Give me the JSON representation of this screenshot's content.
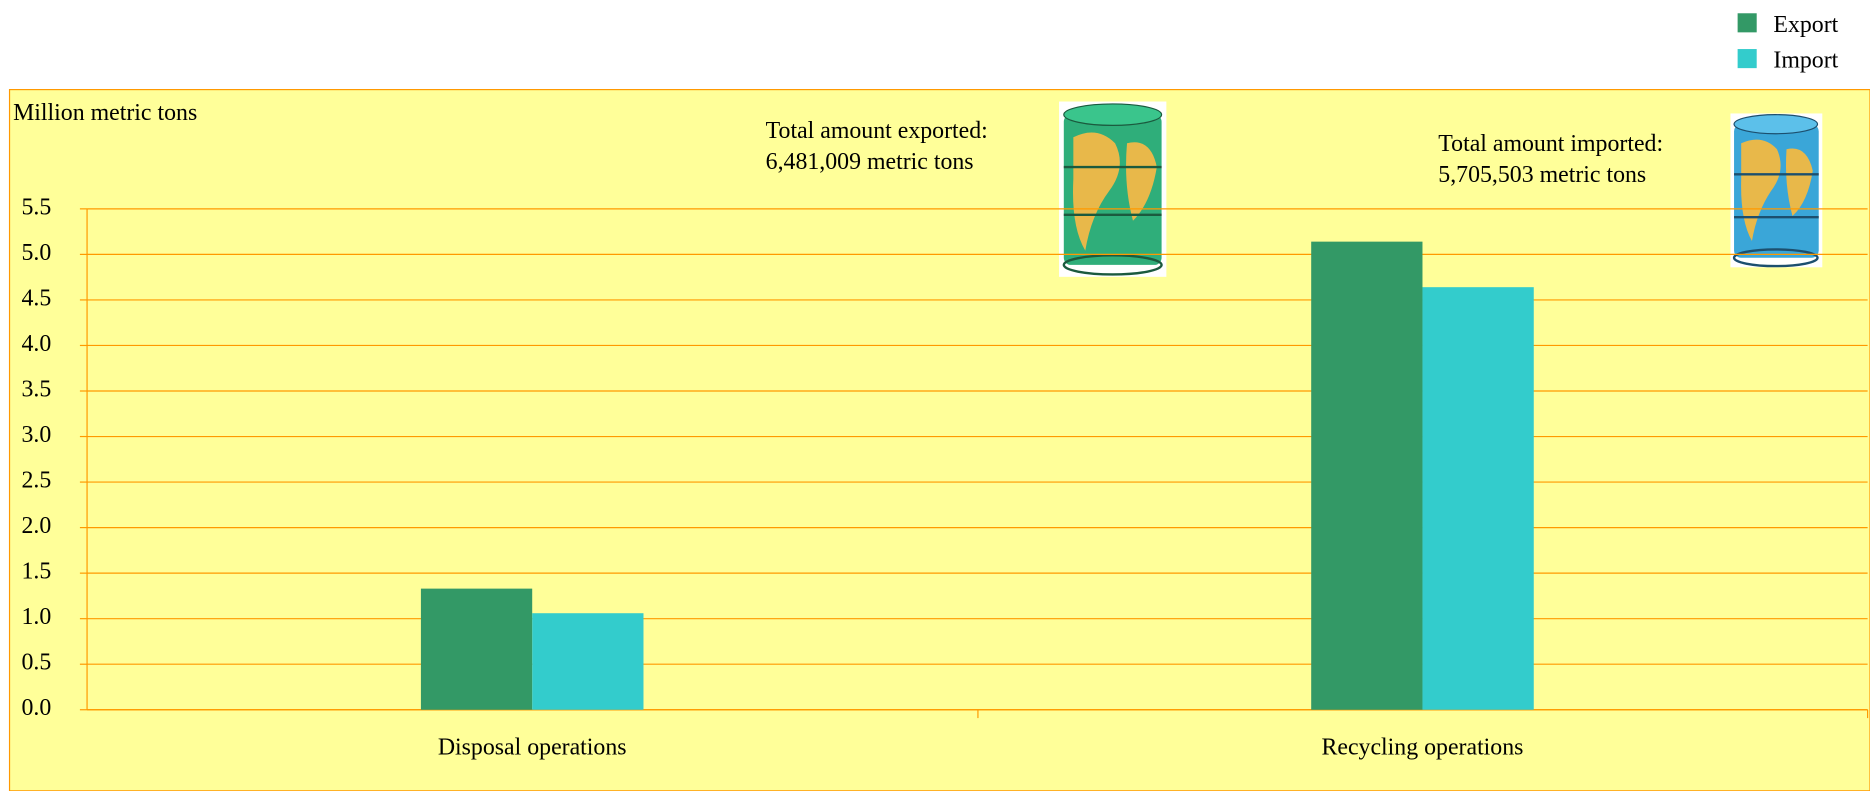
{
  "chart_data": {
    "type": "bar",
    "y_label": "Million metric tons",
    "categories": [
      "Disposal operations",
      "Recycling operations"
    ],
    "series": [
      {
        "name": "Export",
        "color": "#339966",
        "values": [
          1.33,
          5.14
        ]
      },
      {
        "name": "Import",
        "color": "#33cccc",
        "values": [
          1.06,
          4.64
        ]
      }
    ],
    "ylim": [
      0,
      5.5
    ],
    "yticks": [
      {
        "value": 0,
        "label": "0.0"
      },
      0.5,
      {
        "value": 1,
        "label": "1.0"
      },
      1.5,
      {
        "value": 2,
        "label": "2.0"
      },
      2.5,
      {
        "value": 3,
        "label": "3.0"
      },
      3.5,
      {
        "value": 4,
        "label": "4.0"
      },
      4.5,
      {
        "value": 5,
        "label": "5.0"
      },
      5.5
    ],
    "grid": true,
    "legend": "top-right",
    "annotations": [
      {
        "lines": [
          "Total amount exported:",
          "6,481,009 metric tons"
        ]
      },
      {
        "lines": [
          "Total amount imported:",
          "5,705,503 metric tons"
        ]
      }
    ]
  }
}
